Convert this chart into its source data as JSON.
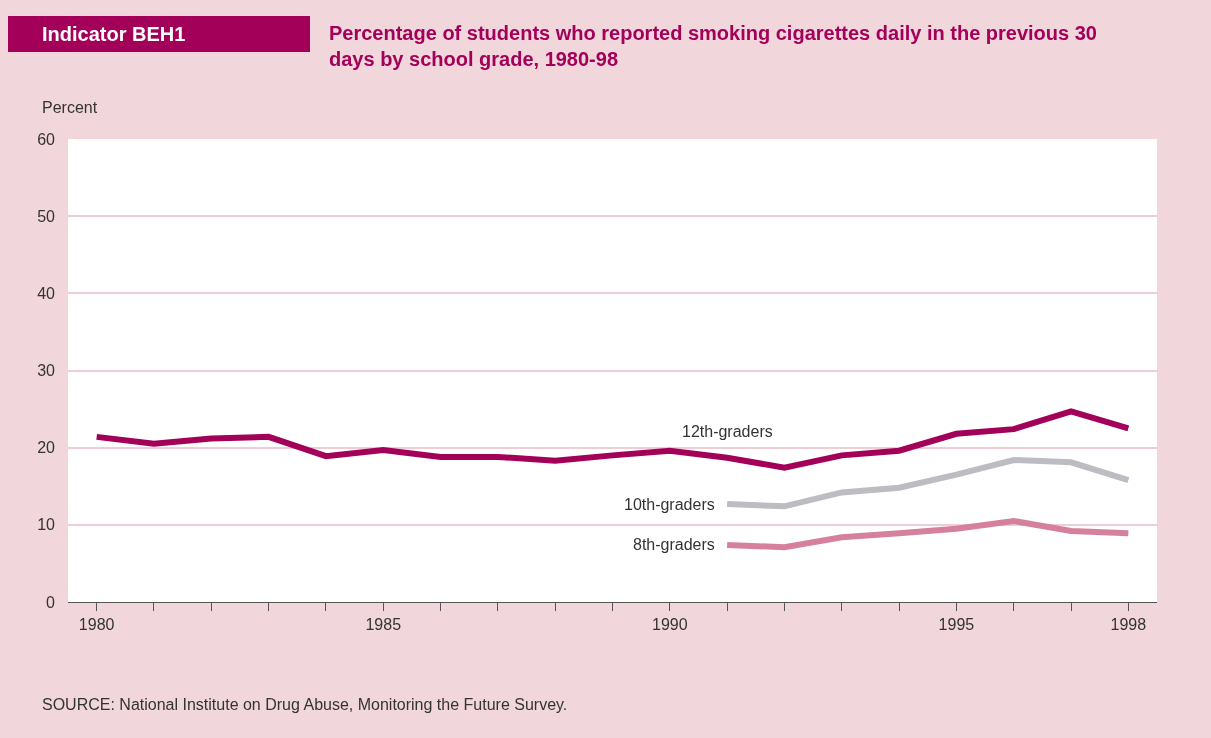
{
  "chart_data": {
    "type": "line",
    "title": "Percentage of students who reported smoking cigarettes daily in the previous 30 days by school grade, 1980-98",
    "ylabel": "Percent",
    "annotations": [
      "Indicator BEH1",
      "SOURCE: National Institute on Drug Abuse, Monitoring the Future Survey."
    ],
    "series": [
      {
        "name": "12th-graders",
        "color": "#a3005a",
        "x": [
          1980,
          1981,
          1982,
          1983,
          1984,
          1985,
          1986,
          1987,
          1988,
          1989,
          1990,
          1991,
          1992,
          1993,
          1994,
          1995,
          1996,
          1997,
          1998
        ],
        "values": [
          21.4,
          20.5,
          21.2,
          21.4,
          18.9,
          19.7,
          18.8,
          18.8,
          18.3,
          19.0,
          19.6,
          18.7,
          17.4,
          19.0,
          19.6,
          21.8,
          22.4,
          24.7,
          22.5
        ]
      },
      {
        "name": "10th-graders",
        "color": "#bdbcc2",
        "x": [
          1991,
          1992,
          1993,
          1994,
          1995,
          1996,
          1997,
          1998
        ],
        "values": [
          12.7,
          12.4,
          14.2,
          14.8,
          16.5,
          18.4,
          18.1,
          15.8
        ]
      },
      {
        "name": "8th-graders",
        "color": "#d5809c",
        "x": [
          1991,
          1992,
          1993,
          1994,
          1995,
          1996,
          1997,
          1998
        ],
        "values": [
          7.4,
          7.1,
          8.4,
          8.9,
          9.5,
          10.5,
          9.2,
          8.9
        ]
      }
    ],
    "xlim": [
      1979.5,
      1998.5
    ],
    "ylim": [
      0,
      60
    ],
    "xticks": [
      1980,
      {
        "value": 1981,
        "label": null
      },
      {
        "value": 1982,
        "label": null
      },
      {
        "value": 1983,
        "label": null
      },
      {
        "value": 1984,
        "label": null
      },
      1985,
      {
        "value": 1986,
        "label": null
      },
      {
        "value": 1987,
        "label": null
      },
      {
        "value": 1988,
        "label": null
      },
      {
        "value": 1989,
        "label": null
      },
      1990,
      {
        "value": 1991,
        "label": null
      },
      {
        "value": 1992,
        "label": null
      },
      {
        "value": 1993,
        "label": null
      },
      {
        "value": 1994,
        "label": null
      },
      1995,
      {
        "value": 1996,
        "label": null
      },
      {
        "value": 1997,
        "label": null
      },
      1998
    ],
    "yticks": [
      0,
      10,
      20,
      30,
      40,
      50,
      60
    ],
    "grid": "y",
    "legend": false,
    "marker": "none",
    "line_style": "solid"
  }
}
